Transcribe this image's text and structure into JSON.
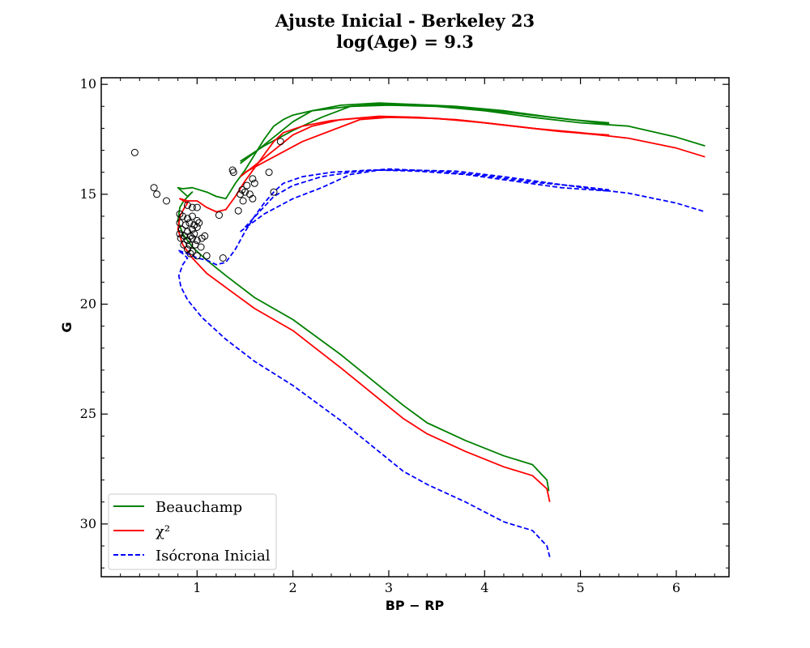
{
  "chart_data": {
    "type": "line",
    "title": [
      "Ajuste Inicial - Berkeley 23",
      "log(Age) = 9.3"
    ],
    "xlabel": "BP − RP",
    "ylabel": "G",
    "xlim": [
      0.0,
      6.55
    ],
    "ylim": [
      32.4,
      9.7
    ],
    "y_inverted": true,
    "x_ticks": [
      1,
      2,
      3,
      4,
      5,
      6
    ],
    "y_ticks": [
      10,
      15,
      20,
      25,
      30
    ],
    "grid": false,
    "legend_position": "lower-left",
    "series": [
      {
        "name": "Beauchamp",
        "kind": "line",
        "color": "#008000",
        "dash": "solid",
        "points": [
          [
            4.67,
            28.5
          ],
          [
            4.65,
            28.0
          ],
          [
            4.5,
            27.3
          ],
          [
            4.2,
            26.9
          ],
          [
            3.8,
            26.2
          ],
          [
            3.4,
            25.4
          ],
          [
            3.15,
            24.6
          ],
          [
            2.5,
            22.3
          ],
          [
            2.0,
            20.7
          ],
          [
            1.6,
            19.7
          ],
          [
            1.3,
            18.7
          ],
          [
            1.1,
            18.0
          ],
          [
            0.95,
            17.4
          ],
          [
            0.85,
            16.8
          ],
          [
            0.8,
            16.2
          ],
          [
            0.82,
            15.6
          ],
          [
            0.86,
            15.3
          ],
          [
            0.95,
            14.9
          ],
          [
            0.9,
            15.1
          ],
          [
            0.8,
            14.7
          ],
          [
            0.85,
            14.75
          ],
          [
            0.95,
            14.7
          ],
          [
            1.1,
            14.9
          ],
          [
            1.2,
            15.1
          ],
          [
            1.3,
            15.2
          ],
          [
            1.4,
            14.5
          ],
          [
            1.5,
            13.9
          ],
          [
            1.6,
            13.2
          ],
          [
            1.7,
            12.5
          ],
          [
            1.8,
            11.9
          ],
          [
            1.9,
            11.6
          ],
          [
            2.0,
            11.4
          ],
          [
            2.2,
            11.2
          ],
          [
            2.6,
            11.0
          ],
          [
            3.0,
            10.95
          ],
          [
            3.5,
            11.0
          ],
          [
            4.0,
            11.2
          ],
          [
            4.5,
            11.5
          ],
          [
            5.0,
            11.75
          ],
          [
            5.5,
            11.9
          ],
          [
            6.0,
            12.4
          ],
          [
            6.3,
            12.8
          ]
        ]
      },
      {
        "name": "",
        "kind": "line",
        "color": "#008000",
        "dash": "solid",
        "points": [
          [
            1.45,
            13.6
          ],
          [
            1.6,
            13.1
          ],
          [
            1.8,
            12.4
          ],
          [
            2.0,
            11.7
          ],
          [
            2.2,
            11.2
          ],
          [
            2.5,
            10.95
          ],
          [
            2.9,
            10.85
          ],
          [
            3.2,
            10.9
          ],
          [
            3.7,
            11.0
          ],
          [
            4.2,
            11.2
          ],
          [
            4.7,
            11.5
          ],
          [
            5.3,
            11.8
          ]
        ]
      },
      {
        "name": "",
        "kind": "line",
        "color": "#008000",
        "dash": "solid",
        "points": [
          [
            1.45,
            13.5
          ],
          [
            1.7,
            12.8
          ],
          [
            2.0,
            12.1
          ],
          [
            2.3,
            11.5
          ],
          [
            2.6,
            11.0
          ],
          [
            2.9,
            10.9
          ],
          [
            3.4,
            10.95
          ],
          [
            3.9,
            11.1
          ],
          [
            4.4,
            11.35
          ],
          [
            4.9,
            11.6
          ],
          [
            5.3,
            11.75
          ]
        ]
      },
      {
        "name": "χ²",
        "kind": "line",
        "color": "#ff0000",
        "dash": "solid",
        "points": [
          [
            4.68,
            29.0
          ],
          [
            4.65,
            28.4
          ],
          [
            4.5,
            27.8
          ],
          [
            4.2,
            27.4
          ],
          [
            3.8,
            26.7
          ],
          [
            3.4,
            25.9
          ],
          [
            3.15,
            25.2
          ],
          [
            2.5,
            22.9
          ],
          [
            2.0,
            21.2
          ],
          [
            1.6,
            20.2
          ],
          [
            1.35,
            19.4
          ],
          [
            1.1,
            18.6
          ],
          [
            0.95,
            17.9
          ],
          [
            0.85,
            17.3
          ],
          [
            0.8,
            16.6
          ],
          [
            0.82,
            16.0
          ],
          [
            0.87,
            15.6
          ],
          [
            0.9,
            15.4
          ],
          [
            0.82,
            15.2
          ],
          [
            0.9,
            15.3
          ],
          [
            1.0,
            15.3
          ],
          [
            1.1,
            15.6
          ],
          [
            1.2,
            15.8
          ],
          [
            1.3,
            15.7
          ],
          [
            1.4,
            15.1
          ],
          [
            1.5,
            14.4
          ],
          [
            1.6,
            13.8
          ],
          [
            1.7,
            13.2
          ],
          [
            1.8,
            12.6
          ],
          [
            1.9,
            12.2
          ],
          [
            2.1,
            11.9
          ],
          [
            2.4,
            11.65
          ],
          [
            2.8,
            11.5
          ],
          [
            3.2,
            11.5
          ],
          [
            3.7,
            11.6
          ],
          [
            4.2,
            11.85
          ],
          [
            4.7,
            12.1
          ],
          [
            5.2,
            12.3
          ],
          [
            5.5,
            12.45
          ],
          [
            6.0,
            12.9
          ],
          [
            6.3,
            13.3
          ]
        ]
      },
      {
        "name": "",
        "kind": "line",
        "color": "#ff0000",
        "dash": "solid",
        "points": [
          [
            1.45,
            14.2
          ],
          [
            1.6,
            13.7
          ],
          [
            1.8,
            13.0
          ],
          [
            2.0,
            12.3
          ],
          [
            2.2,
            11.9
          ],
          [
            2.5,
            11.6
          ],
          [
            2.9,
            11.45
          ],
          [
            3.3,
            11.5
          ],
          [
            3.8,
            11.65
          ],
          [
            4.3,
            11.9
          ],
          [
            4.8,
            12.15
          ],
          [
            5.3,
            12.3
          ]
        ]
      },
      {
        "name": "",
        "kind": "line",
        "color": "#ff0000",
        "dash": "solid",
        "points": [
          [
            1.5,
            14.0
          ],
          [
            1.8,
            13.3
          ],
          [
            2.1,
            12.6
          ],
          [
            2.4,
            12.1
          ],
          [
            2.7,
            11.6
          ],
          [
            3.0,
            11.5
          ],
          [
            3.5,
            11.55
          ],
          [
            4.0,
            11.75
          ],
          [
            4.5,
            12.0
          ],
          [
            5.0,
            12.2
          ],
          [
            5.3,
            12.35
          ]
        ]
      },
      {
        "name": "Isócrona Inicial",
        "kind": "line",
        "color": "#0000ff",
        "dash": "dashed",
        "points": [
          [
            4.68,
            31.5
          ],
          [
            4.65,
            31.0
          ],
          [
            4.5,
            30.3
          ],
          [
            4.2,
            29.9
          ],
          [
            3.8,
            29.0
          ],
          [
            3.4,
            28.2
          ],
          [
            3.15,
            27.6
          ],
          [
            2.5,
            25.3
          ],
          [
            2.0,
            23.7
          ],
          [
            1.6,
            22.6
          ],
          [
            1.3,
            21.6
          ],
          [
            1.05,
            20.6
          ],
          [
            0.9,
            19.8
          ],
          [
            0.83,
            19.2
          ],
          [
            0.81,
            18.7
          ],
          [
            0.85,
            18.2
          ],
          [
            0.9,
            17.9
          ],
          [
            0.85,
            17.7
          ],
          [
            0.8,
            17.55
          ],
          [
            0.9,
            17.7
          ],
          [
            1.0,
            17.9
          ],
          [
            1.1,
            18.0
          ],
          [
            1.2,
            18.2
          ],
          [
            1.3,
            18.1
          ],
          [
            1.4,
            17.5
          ],
          [
            1.5,
            16.7
          ],
          [
            1.6,
            16.0
          ],
          [
            1.7,
            15.4
          ],
          [
            1.8,
            14.9
          ],
          [
            1.9,
            14.5
          ],
          [
            2.1,
            14.2
          ],
          [
            2.4,
            14.0
          ],
          [
            2.8,
            13.9
          ],
          [
            3.2,
            13.9
          ],
          [
            3.7,
            13.95
          ],
          [
            4.2,
            14.2
          ],
          [
            4.7,
            14.5
          ],
          [
            5.2,
            14.8
          ],
          [
            5.5,
            14.95
          ],
          [
            6.0,
            15.4
          ],
          [
            6.3,
            15.8
          ]
        ]
      },
      {
        "name": "",
        "kind": "line",
        "color": "#0000ff",
        "dash": "dashed",
        "points": [
          [
            1.45,
            16.7
          ],
          [
            1.7,
            15.9
          ],
          [
            2.0,
            15.2
          ],
          [
            2.3,
            14.7
          ],
          [
            2.6,
            14.1
          ],
          [
            2.9,
            13.9
          ],
          [
            3.3,
            13.95
          ],
          [
            3.8,
            14.1
          ],
          [
            4.3,
            14.4
          ],
          [
            4.8,
            14.7
          ],
          [
            5.3,
            14.85
          ]
        ]
      },
      {
        "name": "",
        "kind": "line",
        "color": "#0000ff",
        "dash": "dashed",
        "points": [
          [
            1.5,
            16.5
          ],
          [
            1.8,
            15.1
          ],
          [
            2.0,
            14.6
          ],
          [
            2.3,
            14.2
          ],
          [
            2.6,
            14.0
          ],
          [
            3.0,
            13.85
          ],
          [
            3.5,
            13.95
          ],
          [
            4.0,
            14.15
          ],
          [
            4.5,
            14.45
          ],
          [
            5.0,
            14.65
          ],
          [
            5.3,
            14.8
          ]
        ]
      },
      {
        "name": "",
        "kind": "scatter",
        "marker": "open-circle",
        "color": "#000000",
        "points": [
          [
            0.35,
            13.1
          ],
          [
            0.55,
            14.7
          ],
          [
            0.58,
            15.0
          ],
          [
            0.68,
            15.3
          ],
          [
            0.82,
            15.9
          ],
          [
            0.9,
            15.5
          ],
          [
            0.95,
            15.6
          ],
          [
            1.0,
            15.6
          ],
          [
            0.85,
            16.0
          ],
          [
            0.9,
            16.1
          ],
          [
            0.95,
            16.0
          ],
          [
            1.0,
            16.2
          ],
          [
            0.82,
            16.3
          ],
          [
            0.88,
            16.4
          ],
          [
            0.92,
            16.3
          ],
          [
            0.97,
            16.4
          ],
          [
            1.02,
            16.3
          ],
          [
            0.84,
            16.6
          ],
          [
            0.9,
            16.7
          ],
          [
            0.95,
            16.6
          ],
          [
            1.0,
            16.5
          ],
          [
            0.82,
            16.8
          ],
          [
            0.87,
            16.9
          ],
          [
            0.93,
            16.9
          ],
          [
            0.97,
            16.8
          ],
          [
            0.83,
            17.0
          ],
          [
            0.9,
            17.1
          ],
          [
            0.95,
            17.0
          ],
          [
            1.0,
            17.1
          ],
          [
            1.05,
            17.0
          ],
          [
            1.08,
            16.9
          ],
          [
            0.86,
            17.3
          ],
          [
            0.92,
            17.3
          ],
          [
            0.98,
            17.3
          ],
          [
            1.04,
            17.4
          ],
          [
            0.9,
            17.5
          ],
          [
            0.95,
            17.6
          ],
          [
            0.93,
            17.7
          ],
          [
            1.0,
            17.8
          ],
          [
            1.1,
            17.8
          ],
          [
            1.27,
            17.9
          ],
          [
            1.23,
            15.95
          ],
          [
            1.37,
            13.9
          ],
          [
            1.38,
            14.0
          ],
          [
            1.43,
            15.75
          ],
          [
            1.45,
            15.0
          ],
          [
            1.47,
            14.8
          ],
          [
            1.48,
            15.3
          ],
          [
            1.5,
            14.9
          ],
          [
            1.52,
            14.6
          ],
          [
            1.55,
            15.0
          ],
          [
            1.58,
            14.3
          ],
          [
            1.6,
            14.5
          ],
          [
            1.58,
            15.2
          ],
          [
            1.75,
            14.0
          ],
          [
            1.8,
            14.9
          ],
          [
            1.87,
            12.6
          ]
        ]
      }
    ]
  }
}
